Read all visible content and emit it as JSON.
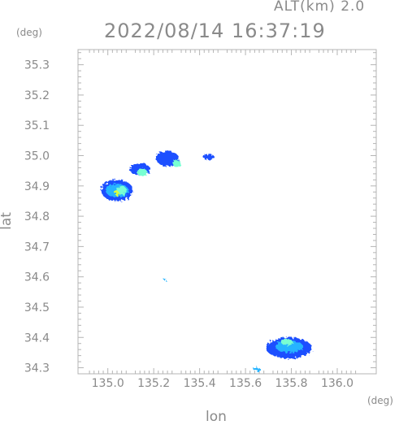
{
  "header": {
    "altitude": "ALT(km) 2.0",
    "timestamp": "2022/08/14 16:37:19"
  },
  "chart_data": {
    "type": "heatmap",
    "title": "2022/08/14 16:37:19",
    "subtitle": "ALT(km) 2.0",
    "xlabel": "lon",
    "ylabel": "lat",
    "x_unit": "(deg)",
    "y_unit": "(deg)",
    "xlim": [
      134.87,
      136.17
    ],
    "ylim": [
      34.28,
      35.35
    ],
    "x_ticks": [
      "135.0",
      "135.2",
      "135.4",
      "135.6",
      "135.8",
      "136.0"
    ],
    "y_ticks": [
      "34.3",
      "34.4",
      "34.5",
      "34.6",
      "34.7",
      "34.8",
      "34.9",
      "35.0",
      "35.1",
      "35.2",
      "35.3"
    ],
    "colors": {
      "low": "#1e50ff",
      "mid_low": "#28b4ff",
      "mid": "#78ffd2",
      "high": "#dcff3c",
      "axis": "#b4b4b4"
    },
    "echoes": [
      {
        "lon": 135.04,
        "lat": 34.885,
        "rlon": 0.07,
        "rlat": 0.035,
        "level": "low"
      },
      {
        "lon": 135.04,
        "lat": 34.885,
        "rlon": 0.05,
        "rlat": 0.022,
        "level": "mid_low"
      },
      {
        "lon": 135.06,
        "lat": 34.885,
        "rlon": 0.022,
        "rlat": 0.014,
        "level": "mid"
      },
      {
        "lon": 135.04,
        "lat": 34.875,
        "rlon": 0.01,
        "rlat": 0.008,
        "level": "high"
      },
      {
        "lon": 135.14,
        "lat": 34.955,
        "rlon": 0.045,
        "rlat": 0.02,
        "level": "low"
      },
      {
        "lon": 135.15,
        "lat": 34.945,
        "rlon": 0.022,
        "rlat": 0.012,
        "level": "mid"
      },
      {
        "lon": 135.26,
        "lat": 34.99,
        "rlon": 0.05,
        "rlat": 0.025,
        "level": "low"
      },
      {
        "lon": 135.3,
        "lat": 34.975,
        "rlon": 0.018,
        "rlat": 0.012,
        "level": "mid"
      },
      {
        "lon": 135.44,
        "lat": 34.995,
        "rlon": 0.025,
        "rlat": 0.01,
        "level": "low"
      },
      {
        "lon": 135.25,
        "lat": 34.59,
        "rlon": 0.006,
        "rlat": 0.004,
        "level": "mid_low"
      },
      {
        "lon": 135.79,
        "lat": 34.365,
        "rlon": 0.1,
        "rlat": 0.035,
        "level": "low"
      },
      {
        "lon": 135.79,
        "lat": 34.37,
        "rlon": 0.06,
        "rlat": 0.02,
        "level": "mid_low"
      },
      {
        "lon": 135.78,
        "lat": 34.385,
        "rlon": 0.025,
        "rlat": 0.01,
        "level": "mid"
      },
      {
        "lon": 135.65,
        "lat": 34.295,
        "rlon": 0.015,
        "rlat": 0.006,
        "level": "mid_low"
      }
    ]
  }
}
